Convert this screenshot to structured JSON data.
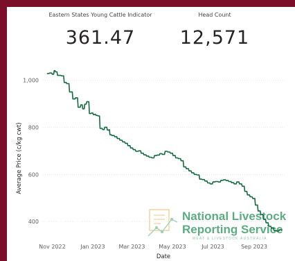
{
  "kpis": [
    {
      "label": "Eastern States Young Cattle Indicator",
      "value": "361.47"
    },
    {
      "label": "Head Count",
      "value": "12,571"
    }
  ],
  "watermark": {
    "line1": "National Livestock",
    "line2": "Reporting Service",
    "sub": "MEAT & LIVESTOCK AUSTRALIA"
  },
  "colors": {
    "frame": "#7b0f2a",
    "series": "#126b3e",
    "watermark": "#3f9e6a"
  },
  "chart_data": {
    "type": "line",
    "title": "",
    "xlabel": "Date",
    "ylabel": "Average Price (c/kg cwt)",
    "ylim": [
      330,
      1060
    ],
    "xlim": [
      "2022-10-18",
      "2023-10-18"
    ],
    "yticks": [
      400,
      600,
      800,
      1000
    ],
    "ytick_labels": [
      "400",
      "600",
      "800",
      "1,000"
    ],
    "xticks": [
      "2022-11-01",
      "2023-01-01",
      "2023-03-01",
      "2023-05-01",
      "2023-07-01",
      "2023-09-01"
    ],
    "xtick_labels": [
      "Nov 2022",
      "Jan 2023",
      "Mar 2023",
      "May 2023",
      "Jul 2023",
      "Sep 2023"
    ],
    "grid": true,
    "legend": "none",
    "series": [
      {
        "x": [
          "2022-10-24",
          "2022-10-28",
          "2022-11-01",
          "2022-11-04",
          "2022-11-06",
          "2022-11-09",
          "2022-11-12",
          "2022-11-15",
          "2022-11-19",
          "2022-11-23",
          "2022-11-27",
          "2022-12-02",
          "2022-12-06",
          "2022-12-10",
          "2022-12-14",
          "2022-12-17",
          "2022-12-20",
          "2022-12-23",
          "2022-12-27",
          "2022-12-30",
          "2023-01-02",
          "2023-01-04",
          "2023-01-06",
          "2023-01-09",
          "2023-01-12",
          "2023-01-16",
          "2023-01-19",
          "2023-01-23",
          "2023-01-26",
          "2023-01-27",
          "2023-01-30",
          "2023-02-03",
          "2023-02-07",
          "2023-02-11",
          "2023-02-15",
          "2023-02-19",
          "2023-02-23",
          "2023-02-27",
          "2023-03-03",
          "2023-03-07",
          "2023-03-11",
          "2023-03-15",
          "2023-03-19",
          "2023-03-23",
          "2023-03-27",
          "2023-03-31",
          "2023-04-04",
          "2023-04-08",
          "2023-04-12",
          "2023-04-16",
          "2023-04-20",
          "2023-04-24",
          "2023-04-28",
          "2023-05-02",
          "2023-05-06",
          "2023-05-10",
          "2023-05-14",
          "2023-05-18",
          "2023-05-22",
          "2023-05-26",
          "2023-05-30",
          "2023-06-03",
          "2023-06-07",
          "2023-06-11",
          "2023-06-15",
          "2023-06-19",
          "2023-06-23",
          "2023-06-27",
          "2023-07-01",
          "2023-07-05",
          "2023-07-09",
          "2023-07-13",
          "2023-07-17",
          "2023-07-21",
          "2023-07-25",
          "2023-07-29",
          "2023-08-02",
          "2023-08-06",
          "2023-08-10",
          "2023-08-14",
          "2023-08-18",
          "2023-08-22",
          "2023-08-26",
          "2023-08-30",
          "2023-09-03",
          "2023-09-07",
          "2023-09-11",
          "2023-09-15",
          "2023-09-19",
          "2023-09-23",
          "2023-09-27",
          "2023-10-01",
          "2023-10-05",
          "2023-10-09",
          "2023-10-13"
        ],
        "y": [
          1028,
          1030,
          1025,
          1040,
          1035,
          1020,
          1020,
          1018,
          990,
          985,
          950,
          920,
          925,
          885,
          895,
          878,
          898,
          908,
          858,
          860,
          853,
          855,
          850,
          848,
          795,
          790,
          800,
          788,
          790,
          768,
          765,
          760,
          752,
          745,
          738,
          732,
          722,
          712,
          705,
          698,
          700,
          690,
          683,
          678,
          673,
          670,
          680,
          682,
          688,
          685,
          698,
          695,
          690,
          680,
          670,
          667,
          658,
          632,
          624,
          615,
          607,
          600,
          598,
          580,
          578,
          572,
          564,
          560,
          568,
          570,
          568,
          575,
          577,
          574,
          570,
          565,
          560,
          568,
          560,
          550,
          528,
          513,
          505,
          498,
          470,
          445,
          430,
          410,
          395,
          380,
          372,
          362,
          360,
          365,
          361
        ],
        "values_note": ""
      }
    ]
  }
}
